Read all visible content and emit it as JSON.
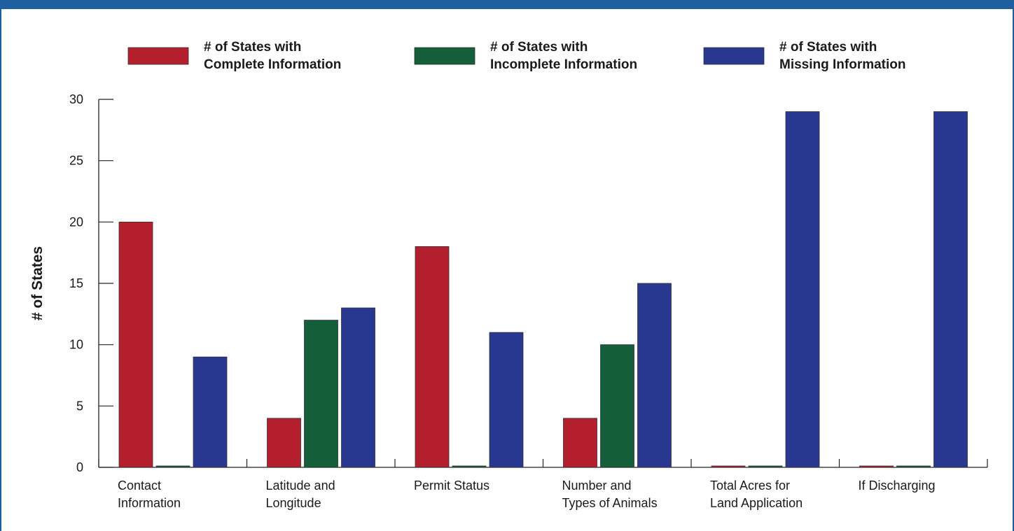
{
  "chart_data": {
    "type": "bar",
    "title": "",
    "xlabel": "",
    "ylabel": "# of States",
    "ylim": [
      0,
      30
    ],
    "yticks": [
      0,
      5,
      10,
      15,
      20,
      25,
      30
    ],
    "categories": [
      [
        "Contact",
        "Information"
      ],
      [
        "Latitude and",
        "Longitude"
      ],
      [
        "Permit Status"
      ],
      [
        "Number and",
        "Types of Animals"
      ],
      [
        "Total Acres for",
        "Land Application"
      ],
      [
        "If Discharging"
      ]
    ],
    "series": [
      {
        "name": [
          "# of States with",
          "Complete Information"
        ],
        "color": "#b31f2c",
        "values": [
          20,
          4,
          18,
          4,
          0,
          0
        ]
      },
      {
        "name": [
          "# of States with",
          "Incomplete Information"
        ],
        "color": "#155e3a",
        "values": [
          0,
          12,
          0,
          10,
          0,
          0
        ]
      },
      {
        "name": [
          "# of States with",
          "Missing Information"
        ],
        "color": "#283891",
        "values": [
          9,
          13,
          11,
          15,
          29,
          29
        ]
      }
    ],
    "grid": false,
    "legend": "top"
  }
}
